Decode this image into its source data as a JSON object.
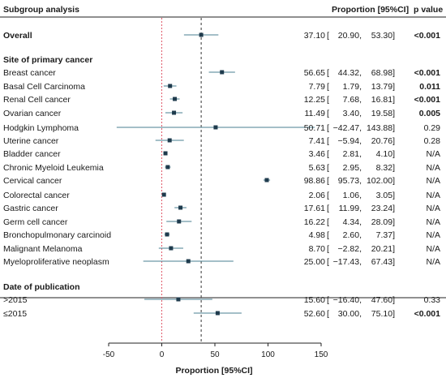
{
  "chart_data": {
    "type": "forest",
    "title": "",
    "columns": {
      "label": "Subgroup analysis",
      "estimate": "Proportion [95%CI]",
      "p": "p value"
    },
    "xlabel": "Proportion [95%CI]",
    "xlim": [
      -50,
      150
    ],
    "xticks": [
      "-50",
      "0",
      "50",
      "100",
      "150"
    ],
    "reference_lines": {
      "null": 0,
      "overall": 37.1
    },
    "rows": [
      {
        "type": "summary",
        "label": "Overall",
        "est": 37.1,
        "lo": 20.9,
        "hi": 53.3,
        "est_text": "37.10",
        "lo_text": "20.90,",
        "hi_text": "53.30]",
        "p": "<0.001",
        "p_bold": true
      },
      {
        "type": "header",
        "label": "Site of primary cancer"
      },
      {
        "type": "data",
        "label": "Breast cancer",
        "est": 56.65,
        "lo": 44.32,
        "hi": 68.98,
        "est_text": "56.65",
        "lo_text": "44.32,",
        "hi_text": "68.98]",
        "p": "<0.001",
        "p_bold": true
      },
      {
        "type": "data",
        "label": "Basal Cell Carcinoma",
        "est": 7.79,
        "lo": 1.79,
        "hi": 13.79,
        "est_text": "7.79",
        "lo_text": "1.79,",
        "hi_text": "13.79]",
        "p": "0.011",
        "p_bold": true
      },
      {
        "type": "data",
        "label": "Renal Cell cancer",
        "est": 12.25,
        "lo": 7.68,
        "hi": 16.81,
        "est_text": "12.25",
        "lo_text": "7.68,",
        "hi_text": "16.81]",
        "p": "<0.001",
        "p_bold": true
      },
      {
        "type": "data",
        "label": "Ovarian cancer",
        "est": 11.49,
        "lo": 3.4,
        "hi": 19.58,
        "est_text": "11.49",
        "lo_text": "3.40,",
        "hi_text": "19.58]",
        "p": "0.005",
        "p_bold": true
      },
      {
        "type": "data",
        "label": "Hodgkin Lymphoma",
        "est": 50.71,
        "lo": -42.47,
        "hi": 143.88,
        "est_text": "50.71",
        "lo_text": "−42.47,",
        "hi_text": "143.88]",
        "p": "0.29",
        "p_bold": false
      },
      {
        "type": "data",
        "label": "Uterine cancer",
        "est": 7.41,
        "lo": -5.94,
        "hi": 20.76,
        "est_text": "7.41",
        "lo_text": "−5.94,",
        "hi_text": "20.76]",
        "p": "0.28",
        "p_bold": false
      },
      {
        "type": "data",
        "label": "Bladder cancer",
        "est": 3.46,
        "lo": 2.81,
        "hi": 4.1,
        "est_text": "3.46",
        "lo_text": "2.81,",
        "hi_text": "4.10]",
        "p": "N/A",
        "p_bold": false
      },
      {
        "type": "data",
        "label": "Chronic Myeloid Leukemia",
        "est": 5.63,
        "lo": 2.95,
        "hi": 8.32,
        "est_text": "5.63",
        "lo_text": "2.95,",
        "hi_text": "8.32]",
        "p": "N/A",
        "p_bold": false
      },
      {
        "type": "data",
        "label": "Cervical cancer",
        "est": 98.86,
        "lo": 95.73,
        "hi": 102.0,
        "est_text": "98.86",
        "lo_text": "95.73,",
        "hi_text": "102.00]",
        "p": "N/A",
        "p_bold": false
      },
      {
        "type": "data",
        "label": "Colorectal cancer",
        "est": 2.06,
        "lo": 1.06,
        "hi": 3.05,
        "est_text": "2.06",
        "lo_text": "1.06,",
        "hi_text": "3.05]",
        "p": "N/A",
        "p_bold": false
      },
      {
        "type": "data",
        "label": "Gastric cancer",
        "est": 17.61,
        "lo": 11.99,
        "hi": 23.24,
        "est_text": "17.61",
        "lo_text": "11.99,",
        "hi_text": "23.24]",
        "p": "N/A",
        "p_bold": false
      },
      {
        "type": "data",
        "label": "Germ cell cancer",
        "est": 16.22,
        "lo": 4.34,
        "hi": 28.09,
        "est_text": "16.22",
        "lo_text": "4.34,",
        "hi_text": "28.09]",
        "p": "N/A",
        "p_bold": false
      },
      {
        "type": "data",
        "label": "Bronchopulmonary carcinoid",
        "est": 4.98,
        "lo": 2.6,
        "hi": 7.37,
        "est_text": "4.98",
        "lo_text": "2.60,",
        "hi_text": "7.37]",
        "p": "N/A",
        "p_bold": false
      },
      {
        "type": "data",
        "label": "Malignant Melanoma",
        "est": 8.7,
        "lo": -2.82,
        "hi": 20.21,
        "est_text": "8.70",
        "lo_text": "−2.82,",
        "hi_text": "20.21]",
        "p": "N/A",
        "p_bold": false
      },
      {
        "type": "data",
        "label": "Myeloproliferative neoplasm",
        "est": 25.0,
        "lo": -17.43,
        "hi": 67.43,
        "est_text": "25.00",
        "lo_text": "−17.43,",
        "hi_text": "67.43]",
        "p": "N/A",
        "p_bold": false
      },
      {
        "type": "header",
        "label": "Date of publication"
      },
      {
        "type": "data",
        "label": ">2015",
        "est": 15.6,
        "lo": -16.4,
        "hi": 47.6,
        "est_text": "15.60",
        "lo_text": "−16.40,",
        "hi_text": "47.60]",
        "p": "0.33",
        "p_bold": false
      },
      {
        "type": "data",
        "label": "≤2015",
        "est": 52.6,
        "lo": 30.0,
        "hi": 75.1,
        "est_text": "52.60",
        "lo_text": "30.00,",
        "hi_text": "75.10]",
        "p": "<0.001",
        "p_bold": true
      }
    ],
    "colors": {
      "ci": "#4a7f90",
      "point": "#1f3b4d",
      "null_line": "#e05a6a",
      "overall_line": "#333333"
    }
  }
}
